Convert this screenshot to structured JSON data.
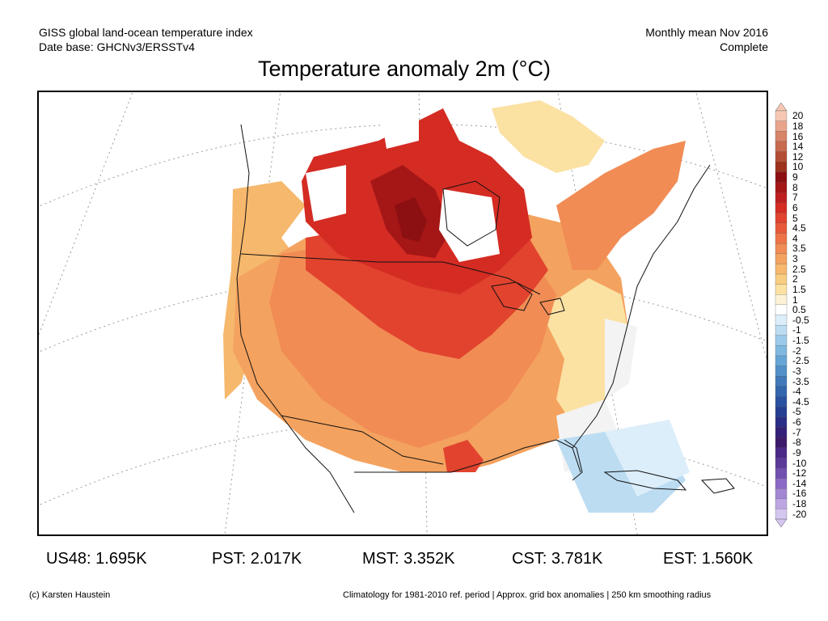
{
  "header": {
    "line1_left": "GISS global land-ocean temperature index",
    "line2_left": "Date base: GHCNv3/ERSSTv4",
    "line1_right": "Monthly mean Nov 2016",
    "line2_right": "Complete"
  },
  "title": "Temperature anomaly 2m (°C)",
  "colorbar": {
    "labels": [
      "20",
      "18",
      "16",
      "14",
      "12",
      "10",
      "9",
      "8",
      "7",
      "6",
      "5",
      "4.5",
      "4",
      "3.5",
      "3",
      "2.5",
      "2",
      "1.5",
      "1",
      "0.5",
      "-0.5",
      "-1",
      "-1.5",
      "-2",
      "-2.5",
      "-3",
      "-3.5",
      "-4",
      "-4.5",
      "-5",
      "-6",
      "-7",
      "-8",
      "-9",
      "-10",
      "-12",
      "-14",
      "-16",
      "-18",
      "-20"
    ],
    "colors": [
      "#f6c8b4",
      "#e9a58c",
      "#d88467",
      "#c86a4d",
      "#b34e33",
      "#9e321c",
      "#8c0f12",
      "#a51616",
      "#be1f1f",
      "#d42b23",
      "#e1432e",
      "#e8593a",
      "#ee7447",
      "#f18c55",
      "#f4a25f",
      "#f6b86c",
      "#f8cd80",
      "#fbe2a3",
      "#fdf2d6",
      "#ffffff",
      "#dceefa",
      "#bcdcf2",
      "#9ccbe9",
      "#80b9e0",
      "#66a6d6",
      "#5190c8",
      "#407aba",
      "#3366ad",
      "#2b52a0",
      "#253e92",
      "#2a2d85",
      "#342077",
      "#3d1a6b",
      "#4b2a86",
      "#5c3a9a",
      "#7150b0",
      "#8a6ac4",
      "#a487d4",
      "#bca6e2",
      "#d4c6ee"
    ]
  },
  "regions": [
    {
      "name": "US48",
      "value": "1.695K",
      "color": "#f4a25f"
    },
    {
      "name": "PST",
      "value": "2.017K",
      "color": "#f18c55"
    },
    {
      "name": "MST",
      "value": "3.352K",
      "color": "#e1432e"
    },
    {
      "name": "CST",
      "value": "3.781K",
      "color": "#d42b23"
    },
    {
      "name": "EST",
      "value": "1.560K",
      "color": "#f8cd80"
    }
  ],
  "stats": {
    "us48": "US48: 1.695K",
    "pst": "PST: 2.017K",
    "mst": "MST: 3.352K",
    "cst": "CST: 3.781K",
    "est": "EST: 1.560K"
  },
  "footer": {
    "left": "(c) Karsten Haustein",
    "right": "Climatology for 1981-2010 ref. period | Approx. grid box anomalies | 250 km smoothing radius"
  },
  "map_colors": {
    "cold": "#dceefa",
    "cool": "#bcdcf2",
    "near_zero": "#f3f3f3",
    "warm_light": "#fbe2a3",
    "warm": "#f6b86c",
    "warmer": "#f18c55",
    "hot": "#e1432e",
    "hotter": "#d42b23",
    "hottest": "#a51616",
    "peak": "#8c0f12"
  }
}
